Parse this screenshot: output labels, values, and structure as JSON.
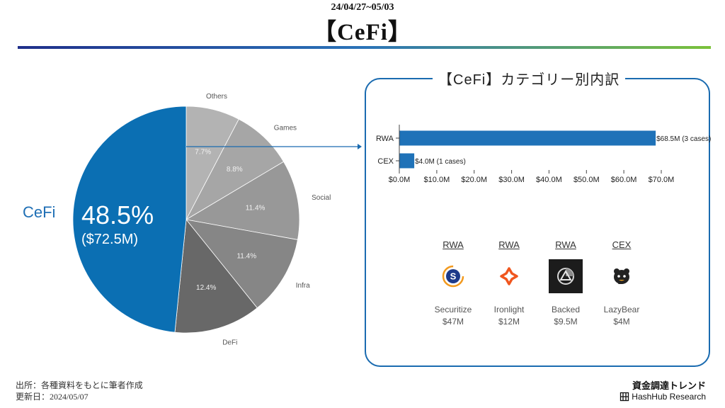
{
  "header": {
    "date_range": "24/04/27~05/03",
    "title": "【CeFi】"
  },
  "chart_data": [
    {
      "type": "pie",
      "slices": [
        {
          "name": "Others",
          "percent": 7.7,
          "label": "7.7%",
          "color": "#b3b3b3"
        },
        {
          "name": "Games",
          "percent": 8.8,
          "label": "8.8%",
          "color": "#a6a6a6"
        },
        {
          "name": "Social",
          "percent": 11.4,
          "label": "11.4%",
          "color": "#989898"
        },
        {
          "name": "Infra",
          "percent": 11.4,
          "label": "11.4%",
          "color": "#868686"
        },
        {
          "name": "DeFi",
          "percent": 12.4,
          "label": "12.4%",
          "color": "#686868"
        },
        {
          "name": "CeFi",
          "percent": 48.5,
          "label": "48.5%",
          "color": "#0b6fb3"
        }
      ],
      "highlight": {
        "name": "CeFi",
        "percent_label": "48.5%",
        "amount_label": "($72.5M)"
      }
    },
    {
      "type": "bar",
      "orientation": "horizontal",
      "title": "【CeFi】カテゴリー別内訳",
      "categories": [
        "RWA",
        "CEX"
      ],
      "values": [
        68.5,
        4.0
      ],
      "value_labels": [
        "$68.5M (3 cases)",
        "$4.0M (1 cases)"
      ],
      "xlim": [
        0,
        70
      ],
      "xticks": [
        "$0.0M",
        "$10.0M",
        "$20.0M",
        "$30.0M",
        "$40.0M",
        "$50.0M",
        "$60.0M",
        "$70.0M"
      ],
      "bar_color": "#1f72b8"
    }
  ],
  "projects": [
    {
      "category": "RWA",
      "name": "Securitize",
      "amount": "$47M",
      "logo_icon": "securitize-logo-icon"
    },
    {
      "category": "RWA",
      "name": "Ironlight",
      "amount": "$12M",
      "logo_icon": "ironlight-logo-icon"
    },
    {
      "category": "RWA",
      "name": "Backed",
      "amount": "$9.5M",
      "logo_icon": "backed-logo-icon"
    },
    {
      "category": "CEX",
      "name": "LazyBear",
      "amount": "$4M",
      "logo_icon": "lazybear-logo-icon"
    }
  ],
  "footer": {
    "source": "出所：各種資料をもとに筆者作成",
    "updated": "更新日：2024/05/07",
    "series_name": "資金調達トレンド",
    "brand": "HashHub Research"
  }
}
